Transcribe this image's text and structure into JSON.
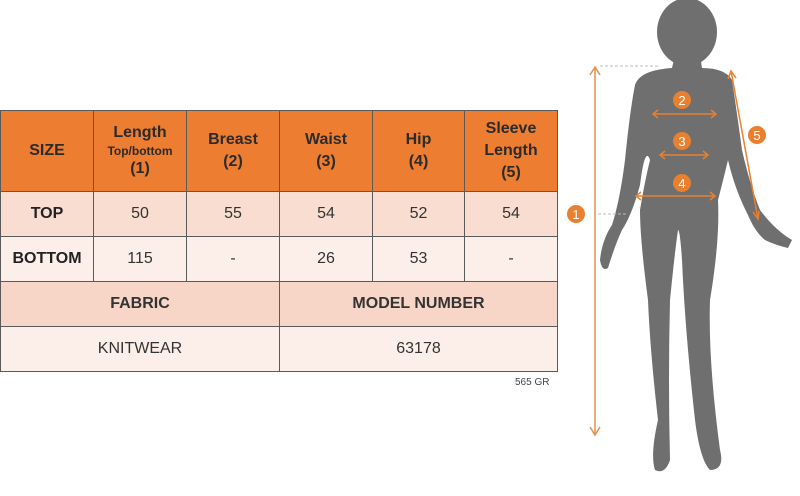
{
  "table": {
    "headers": [
      {
        "title": "SIZE"
      },
      {
        "title": "Length",
        "sub": "Top/bottom",
        "num": "(1)"
      },
      {
        "title": "Breast",
        "num": "(2)"
      },
      {
        "title": "Waist",
        "num": "(3)"
      },
      {
        "title": "Hip",
        "num": "(4)"
      },
      {
        "title": "Sleeve Length",
        "num": "(5)"
      }
    ],
    "rows": [
      {
        "label": "TOP",
        "values": [
          "50",
          "55",
          "54",
          "52",
          "54"
        ]
      },
      {
        "label": "BOTTOM",
        "values": [
          "115",
          "-",
          "26",
          "53",
          "-"
        ]
      }
    ],
    "fabric_label": "FABRIC",
    "fabric_value": "KNITWEAR",
    "model_label": "MODEL NUMBER",
    "model_value": "63178"
  },
  "weight": "565 GR",
  "figure": {
    "markers": [
      "1",
      "2",
      "3",
      "4",
      "5"
    ],
    "colors": {
      "header": "#ED7D31",
      "silhouette": "#6f6f6f",
      "marker": "#E9802F"
    }
  }
}
